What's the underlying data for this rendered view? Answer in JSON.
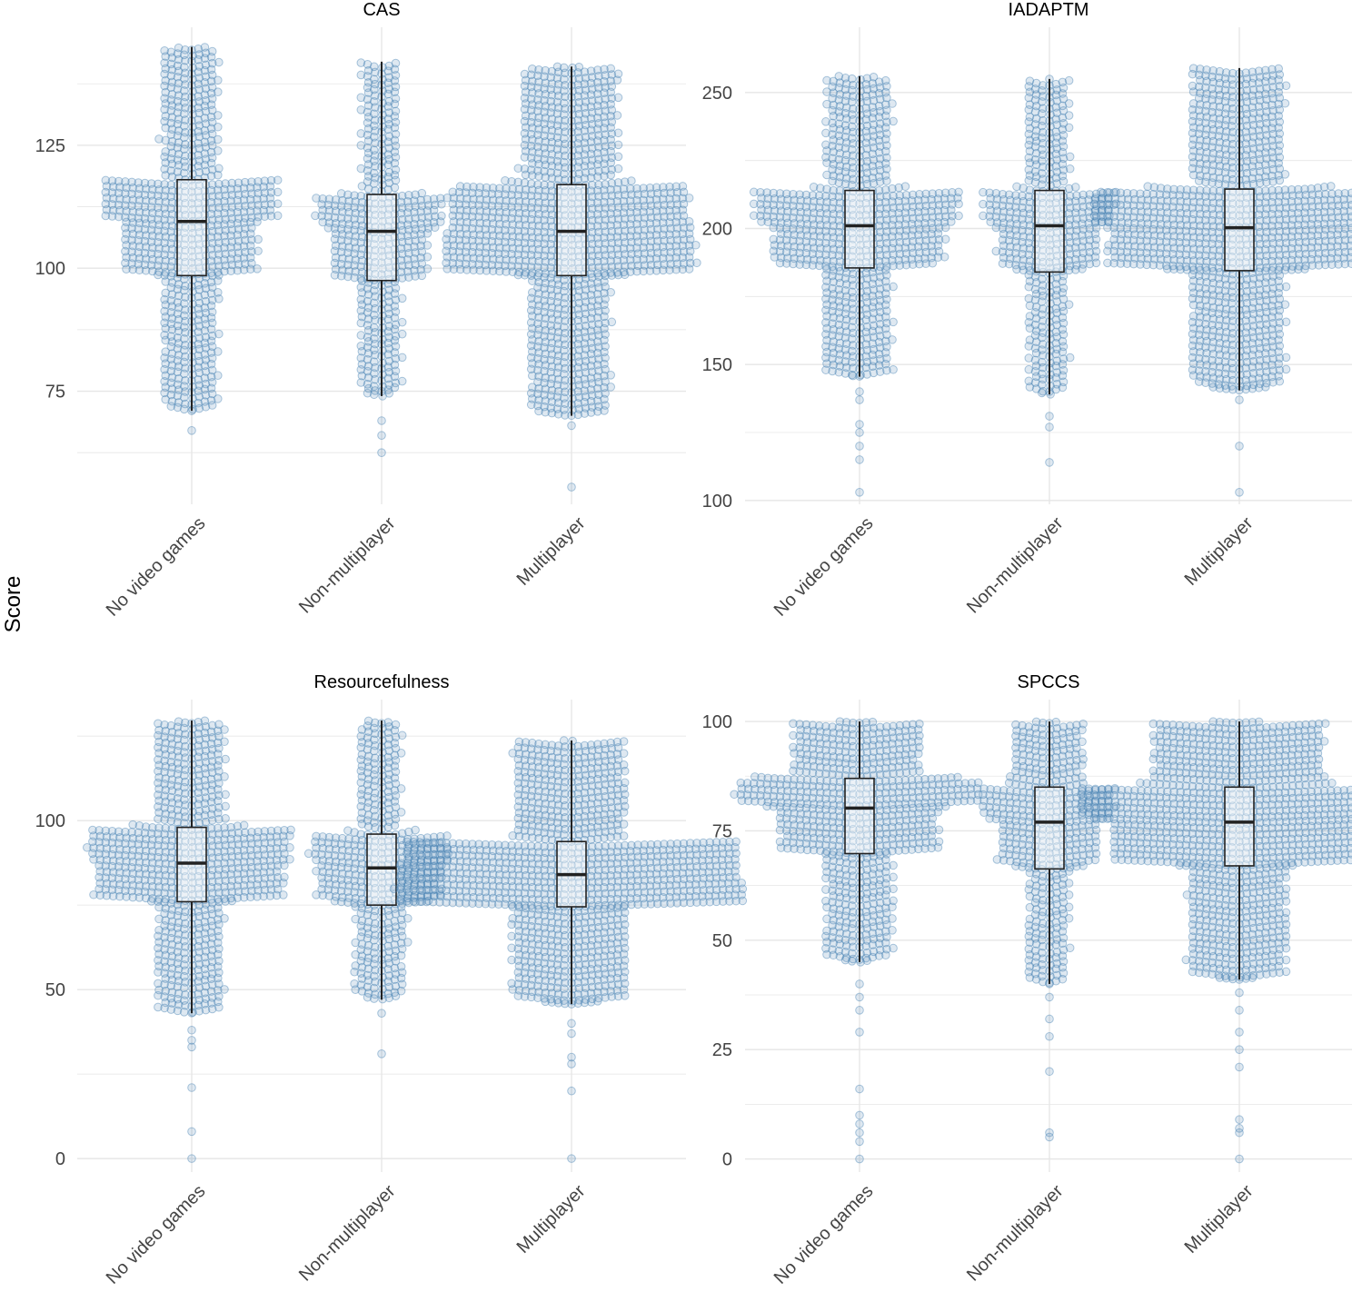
{
  "chart_data": [
    {
      "type": "boxplot+beeswarm",
      "title": "CAS",
      "categories": [
        "No video games",
        "Non-multiplayer",
        "Multiplayer"
      ],
      "ylim": [
        52,
        149
      ],
      "yticks": [
        75,
        100,
        125
      ],
      "grid": true,
      "boxes": [
        {
          "whisker_low": 71,
          "q1": 98.5,
          "median": 109.5,
          "q3": 118,
          "whisker_high": 145,
          "outliers": [
            67
          ]
        },
        {
          "whisker_low": 74,
          "q1": 97.5,
          "median": 107.5,
          "q3": 115,
          "whisker_high": 142,
          "outliers": [
            69,
            66,
            62.5
          ]
        },
        {
          "whisker_low": 70,
          "q1": 98.5,
          "median": 107.5,
          "q3": 117,
          "whisker_high": 141,
          "outliers": [
            68,
            55.5
          ]
        }
      ]
    },
    {
      "type": "boxplot+beeswarm",
      "title": "IADAPTM",
      "categories": [
        "No video games",
        "Non-multiplayer",
        "Multiplayer"
      ],
      "ylim": [
        98.6,
        274
      ],
      "yticks": [
        100,
        150,
        200,
        250
      ],
      "grid": true,
      "boxes": [
        {
          "whisker_low": 145.5,
          "q1": 185.5,
          "median": 201,
          "q3": 214,
          "whisker_high": 256,
          "outliers": [
            140,
            137,
            128,
            125,
            120,
            115,
            103
          ]
        },
        {
          "whisker_low": 139,
          "q1": 184,
          "median": 201,
          "q3": 214,
          "whisker_high": 255,
          "outliers": [
            131,
            127,
            114
          ]
        },
        {
          "whisker_low": 140.5,
          "q1": 184.5,
          "median": 200.3,
          "q3": 214.5,
          "whisker_high": 259,
          "outliers": [
            137,
            120,
            103
          ]
        }
      ]
    },
    {
      "type": "boxplot+beeswarm",
      "title": "Resourcefulness",
      "categories": [
        "No video games",
        "Non-multiplayer",
        "Multiplayer"
      ],
      "ylim": [
        -4,
        135.8
      ],
      "yticks": [
        0,
        50,
        100
      ],
      "grid": true,
      "boxes": [
        {
          "whisker_low": 43,
          "q1": 76,
          "median": 87.4,
          "q3": 98,
          "whisker_high": 129.6,
          "outliers": [
            38,
            35,
            33,
            21,
            8,
            0
          ]
        },
        {
          "whisker_low": 47,
          "q1": 75,
          "median": 86,
          "q3": 96,
          "whisker_high": 129.6,
          "outliers": [
            43,
            31
          ]
        },
        {
          "whisker_low": 45.7,
          "q1": 74.5,
          "median": 84,
          "q3": 93.8,
          "whisker_high": 123.7,
          "outliers": [
            40,
            37,
            30,
            28,
            20,
            0
          ]
        }
      ]
    },
    {
      "type": "boxplot+beeswarm",
      "title": "SPCCS",
      "categories": [
        "No video games",
        "Non-multiplayer",
        "Multiplayer"
      ],
      "ylim": [
        -3,
        105
      ],
      "yticks": [
        0,
        25,
        50,
        75,
        100
      ],
      "grid": true,
      "boxes": [
        {
          "whisker_low": 45,
          "q1": 69.8,
          "median": 80.2,
          "q3": 87,
          "whisker_high": 100,
          "outliers": [
            40,
            37,
            34,
            29,
            16,
            10,
            8,
            6,
            4,
            0
          ]
        },
        {
          "whisker_low": 40,
          "q1": 66.3,
          "median": 77,
          "q3": 85,
          "whisker_high": 100,
          "outliers": [
            37,
            32,
            28,
            20,
            6,
            5
          ]
        },
        {
          "whisker_low": 41,
          "q1": 67,
          "median": 77,
          "q3": 85,
          "whisker_high": 100,
          "outliers": [
            38,
            34,
            29,
            25,
            21,
            9,
            7,
            6,
            0
          ]
        }
      ]
    }
  ],
  "ylabel": "Score",
  "colors": {
    "point_fill": "#4682b4",
    "box_line": "#222222",
    "grid": "#e6e6e6",
    "text": "#333333"
  }
}
